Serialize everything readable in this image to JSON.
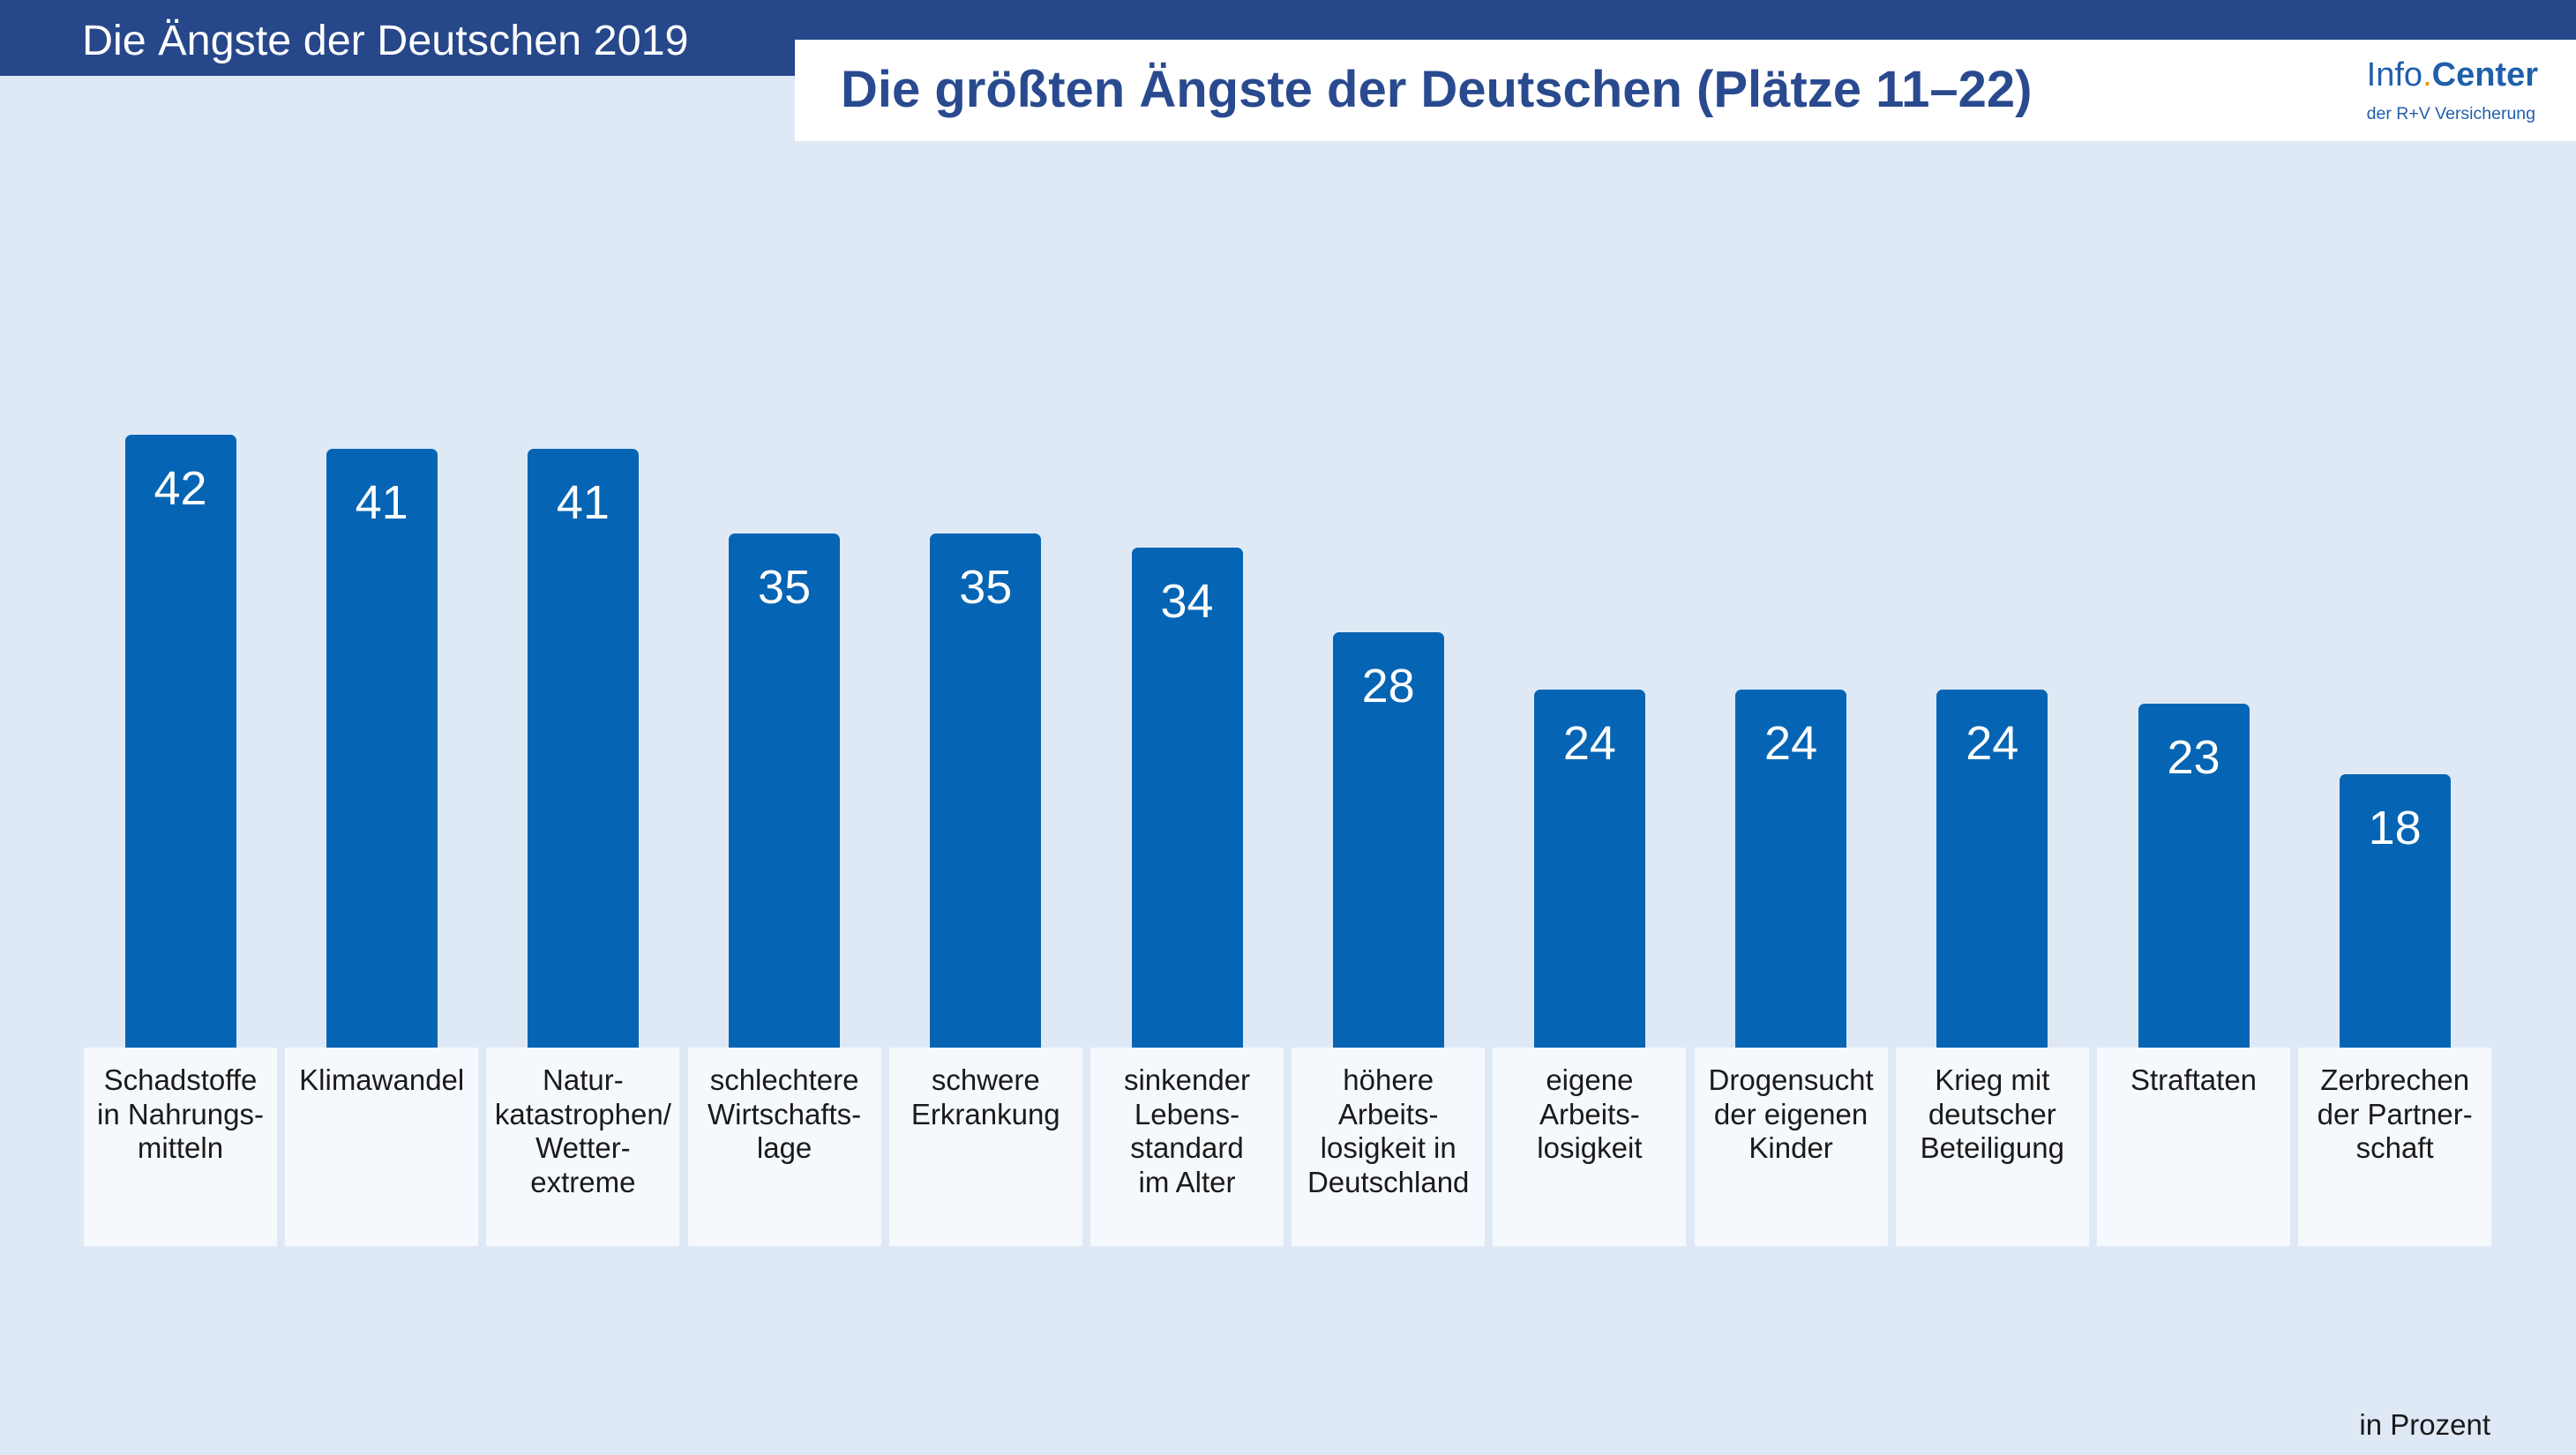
{
  "header": {
    "tag": "Die Ängste der Deutschen 2019"
  },
  "logo": {
    "part1": "Info",
    "dot": ".",
    "part2": "Center",
    "subline": "der R+V Versicherung"
  },
  "colors": {
    "bar": "#0565b4",
    "navy": "#26478a",
    "title": "#294a8f",
    "logo": "#1f5fab",
    "logo_dot": "#f39200",
    "background": "#dfe9f6",
    "label_box": "#f5f8fc"
  },
  "chart_data": {
    "type": "bar",
    "title": "Die größten Ängste der Deutschen (Plätze 11–22)",
    "unit_label": "in Prozent",
    "grid": false,
    "categories": [
      "Schadstoffe\nin Nahrungs-\nmitteln",
      "Klimawandel",
      "Natur-\nkatastrophen/\nWetter-\nextreme",
      "schlechtere\nWirtschafts-\nlage",
      "schwere\nErkrankung",
      "sinkender\nLebens-\nstandard\nim Alter",
      "höhere\nArbeits-\nlosigkeit in\nDeutschland",
      "eigene\nArbeits-\nlosigkeit",
      "Drogensucht\nder eigenen\nKinder",
      "Krieg mit\ndeutscher\nBeteiligung",
      "Straftaten",
      "Zerbrechen\nder Partner-\nschaft"
    ],
    "values": [
      42,
      41,
      41,
      35,
      35,
      34,
      28,
      24,
      24,
      24,
      23,
      18
    ]
  }
}
